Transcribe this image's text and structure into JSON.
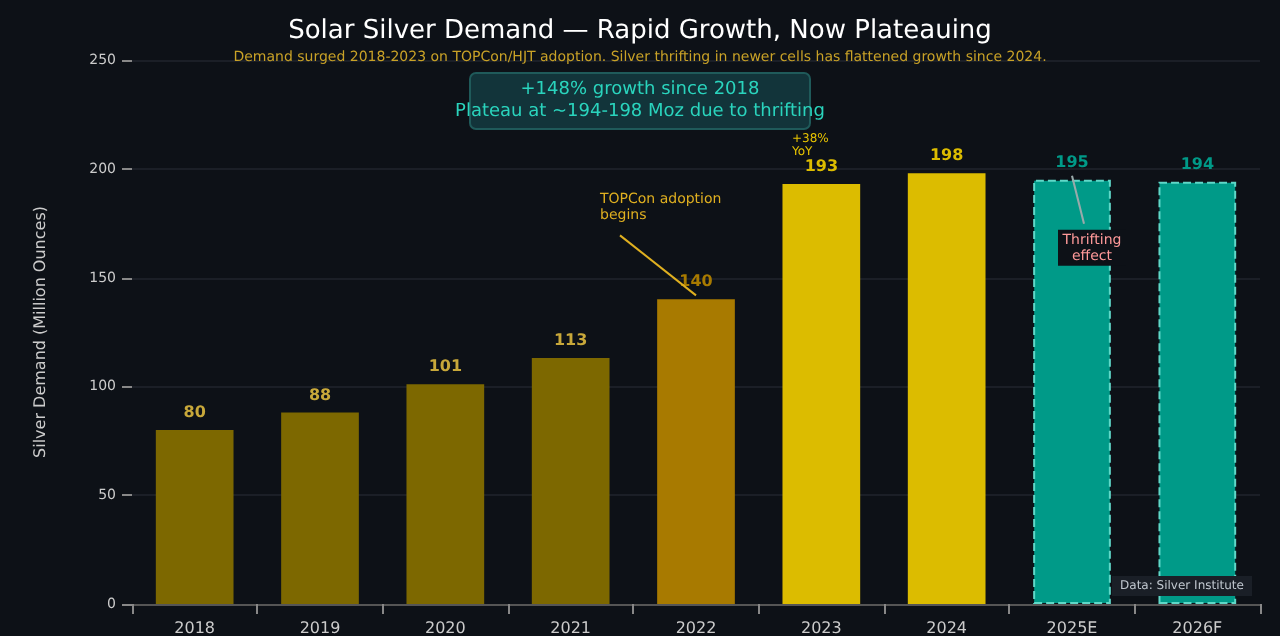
{
  "chart_data": {
    "type": "bar",
    "title": "Solar Silver Demand — Rapid Growth, Now Plateauing",
    "subtitle": "Demand surged 2018-2023 on TOPCon/HJT adoption. Silver thrifting in newer cells has flattened growth since 2024.",
    "ylabel": "Silver Demand (Million Ounces)",
    "categories": [
      "2018",
      "2019",
      "2020",
      "2021",
      "2022",
      "2023",
      "2024",
      "2025E",
      "2026F"
    ],
    "values": [
      80,
      88,
      101,
      113,
      140,
      193,
      198,
      195,
      194
    ],
    "colors": [
      "#7d6800",
      "#7d6800",
      "#7d6800",
      "#7d6800",
      "#a87a00",
      "#dcbc00",
      "#dcbc00",
      "#009a88",
      "#009a88"
    ],
    "ylim": [
      0,
      250
    ],
    "yticks": [
      0,
      50,
      100,
      150,
      200,
      250
    ],
    "grid": "y",
    "data_labels": true,
    "annotations": [
      "+148% growth since 2018\nPlateau at ~194-198 Moz due to thrifting",
      {
        "text": "TOPCon adoption\nbegins",
        "x": "2022",
        "y": 140
      },
      "+38%\nYoY",
      {
        "text": "Thrifting\neffect",
        "x": "2025E",
        "y": 195
      },
      "Data: Silver Institute"
    ]
  }
}
